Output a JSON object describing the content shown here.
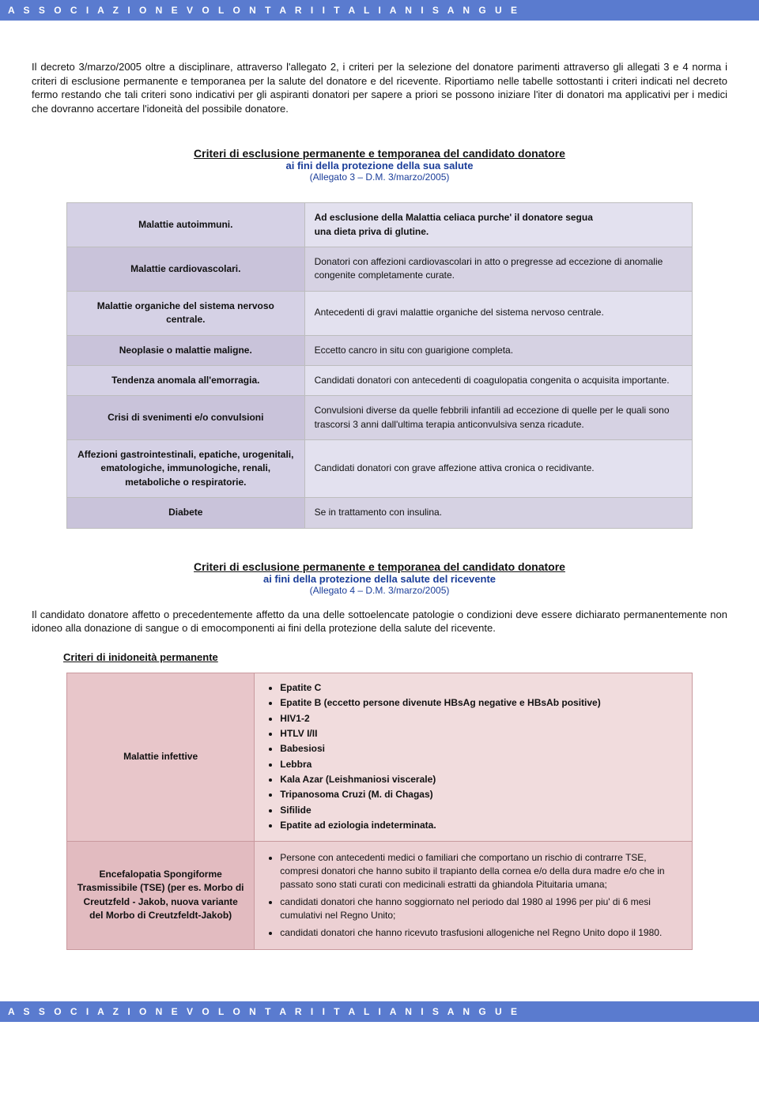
{
  "header": "A S S O C I A Z I O N E   V O L O N T A R I   I T A L I A N I   S A N G U E",
  "footer": "A S S O C I A Z I O N E   V O L O N T A R I   I T A L I A N I   S A N G U E",
  "intro": "Il decreto 3/marzo/2005 oltre a disciplinare, attraverso l'allegato 2, i criteri per la selezione del donatore parimenti attraverso gli allegati 3 e 4 norma i criteri di esclusione permanente e temporanea per la salute del donatore e del ricevente. Riportiamo nelle tabelle sottostanti i criteri indicati nel decreto fermo restando che tali criteri sono indicativi per gli aspiranti donatori per sapere a priori se possono iniziare l'iter di donatori ma applicativi per i medici che dovranno accertare l'idoneità del possibile donatore.",
  "section1": {
    "title": "Criteri di esclusione permanente e temporanea del candidato donatore",
    "subtitle": "ai fini della protezione della sua salute",
    "ref": "(Allegato 3 – D.M. 3/marzo/2005)",
    "rows": [
      {
        "l": "Malattie autoimmuni.",
        "r": "Ad esclusione della Malattia celiaca purche' il donatore segua\nuna dieta priva di glutine."
      },
      {
        "l": "Malattie cardiovascolari.",
        "r": "Donatori con affezioni cardiovascolari in atto o pregresse ad eccezione di anomalie congenite completamente curate."
      },
      {
        "l": "Malattie organiche del sistema nervoso centrale.",
        "r": "Antecedenti di gravi malattie organiche del sistema nervoso centrale."
      },
      {
        "l": "Neoplasie o malattie maligne.",
        "r": "Eccetto cancro in situ con guarigione completa."
      },
      {
        "l": "Tendenza anomala all'emorragia.",
        "r": "Candidati donatori con antecedenti di coagulopatia congenita o acquisita importante."
      },
      {
        "l": "Crisi di svenimenti e/o convulsioni",
        "r": "Convulsioni diverse da quelle febbrili infantili ad eccezione di quelle per le quali sono trascorsi 3 anni dall'ultima terapia anticonvulsiva senza ricadute."
      },
      {
        "l": "Affezioni gastrointestinali, epatiche, urogenitali, ematologiche, immunologiche, renali, metaboliche o respiratorie.",
        "r": "Candidati donatori con grave affezione attiva cronica o recidivante."
      },
      {
        "l": "Diabete",
        "r": "Se in trattamento con insulina."
      }
    ]
  },
  "section2": {
    "title": "Criteri di esclusione permanente e temporanea del candidato donatore",
    "subtitle": "ai fini della protezione della salute del ricevente",
    "ref": "(Allegato 4 – D.M. 3/marzo/2005)",
    "para": "Il candidato donatore affetto o precedentemente affetto da una delle sottoelencate patologie o condizioni deve essere dichiarato permanentemente non idoneo alla donazione di sangue o di emocomponenti ai fini della protezione della salute del ricevente.",
    "subheading": "Criteri di inidoneità permanente",
    "row1": {
      "l": "Malattie infettive",
      "items": [
        "Epatite C",
        "Epatite B (eccetto persone divenute HBsAg negative e HBsAb positive)",
        "HIV1-2",
        "HTLV I/II",
        "Babesiosi",
        "Lebbra",
        "Kala Azar (Leishmaniosi viscerale)",
        "Tripanosoma Cruzi (M. di Chagas)",
        "Sifilide",
        "Epatite ad eziologia indeterminata."
      ]
    },
    "row2": {
      "l": "Encefalopatia Spongiforme Trasmissibile (TSE) (per es. Morbo di Creutzfeld - Jakob, nuova variante del Morbo di Creutzfeldt-Jakob)",
      "items": [
        "Persone con antecedenti medici o familiari che comportano un rischio di contrarre TSE, compresi donatori che hanno subito il trapianto della cornea e/o della dura madre e/o che in passato sono stati curati con medicinali estratti da ghiandola Pituitaria umana;",
        "candidati donatori che hanno soggiornato nel periodo dal 1980 al 1996 per piu' di 6 mesi cumulativi nel Regno Unito;",
        "candidati donatori che hanno ricevuto trasfusioni allogeniche nel Regno Unito dopo il 1980."
      ]
    }
  }
}
